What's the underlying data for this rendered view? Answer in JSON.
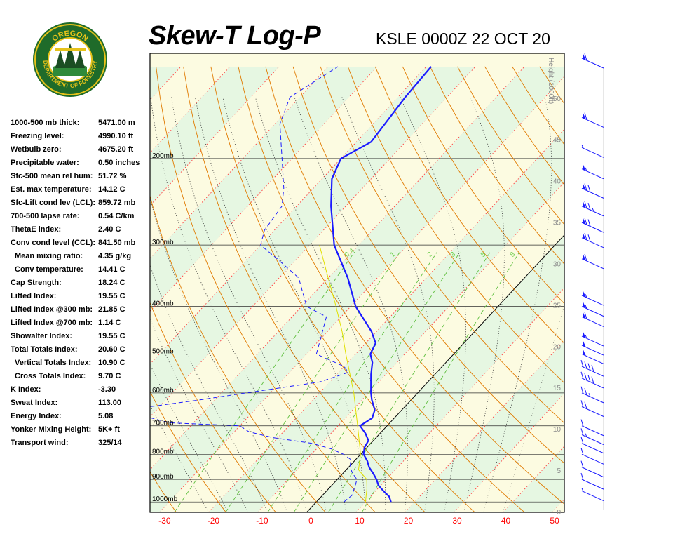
{
  "header": {
    "title": "Skew-T Log-P",
    "station": "KSLE 0000Z 22 OCT 20"
  },
  "logo": {
    "text_top": "OREGON",
    "text_bottom": "DEPARTMENT OF FORESTRY",
    "colors": {
      "ring": "#1f6b2a",
      "gold": "#e6c21a"
    }
  },
  "indices": [
    {
      "label": "1000-500 mb thick:",
      "value": "5471.00 m",
      "indent": false
    },
    {
      "label": "Freezing level:",
      "value": "4990.10 ft",
      "indent": false
    },
    {
      "label": "Wetbulb zero:",
      "value": "4675.20 ft",
      "indent": false
    },
    {
      "label": "Precipitable water:",
      "value": "0.50 inches",
      "indent": false
    },
    {
      "label": "Sfc-500 mean rel hum:",
      "value": "51.72 %",
      "indent": false
    },
    {
      "label": "Est. max temperature:",
      "value": "14.12 C",
      "indent": false
    },
    {
      "label": "Sfc-Lift cond lev (LCL):",
      "value": "859.72 mb",
      "indent": false
    },
    {
      "label": "700-500 lapse rate:",
      "value": "0.54 C/km",
      "indent": false
    },
    {
      "label": "ThetaE index:",
      "value": "2.40 C",
      "indent": false
    },
    {
      "label": "Conv cond level (CCL):",
      "value": "841.50 mb",
      "indent": false
    },
    {
      "label": "Mean mixing ratio:",
      "value": "4.35 g/kg",
      "indent": true
    },
    {
      "label": "Conv temperature:",
      "value": "14.41 C",
      "indent": true
    },
    {
      "label": "Cap Strength:",
      "value": "18.24 C",
      "indent": false
    },
    {
      "label": "Lifted Index:",
      "value": "19.55 C",
      "indent": false
    },
    {
      "label": "Lifted Index @300 mb:",
      "value": "21.85 C",
      "indent": false
    },
    {
      "label": "Lifted Index @700 mb:",
      "value": "1.14 C",
      "indent": false
    },
    {
      "label": "Showalter Index:",
      "value": "19.55 C",
      "indent": false
    },
    {
      "label": "Total Totals Index:",
      "value": "20.60 C",
      "indent": false
    },
    {
      "label": "Vertical Totals Index:",
      "value": "10.90 C",
      "indent": true
    },
    {
      "label": "Cross Totals Index:",
      "value": "9.70 C",
      "indent": true
    },
    {
      "label": "K Index:",
      "value": "-3.30",
      "indent": false
    },
    {
      "label": "Sweat Index:",
      "value": "113.00",
      "indent": false
    },
    {
      "label": "Energy Index:",
      "value": "5.08",
      "indent": false
    },
    {
      "label": "Yonker Mixing Height:",
      "value": "5K+ ft",
      "indent": false
    },
    {
      "label": "Transport wind:",
      "value": "325/14",
      "indent": false
    }
  ],
  "chart_data": {
    "type": "line",
    "title": "Skew-T Log-P",
    "x_ticks": [
      -30,
      -20,
      -10,
      0,
      10,
      20,
      30,
      40,
      50
    ],
    "x_range": [
      -33,
      52
    ],
    "pressure_levels": [
      1000,
      900,
      800,
      700,
      600,
      500,
      400,
      300,
      200
    ],
    "pressure_labels": [
      "1000mb",
      "900mb",
      "800mb",
      "700mb",
      "600mb",
      "500mb",
      "400mb",
      "300mb",
      "200mb"
    ],
    "height_axis_label": "Height (1000ft)",
    "height_ticks": [
      0,
      5,
      10,
      15,
      20,
      25,
      30,
      35,
      40,
      45,
      50
    ],
    "height_range": [
      0,
      55.5
    ],
    "mixing_ratio_labels": [
      "0.4",
      "1",
      "2",
      "3",
      "5",
      "8"
    ],
    "temperature": [
      {
        "p": 1000,
        "t": 15.2
      },
      {
        "p": 975,
        "t": 13.8
      },
      {
        "p": 950,
        "t": 11.6
      },
      {
        "p": 925,
        "t": 9.5
      },
      {
        "p": 900,
        "t": 8.0
      },
      {
        "p": 875,
        "t": 6.2
      },
      {
        "p": 850,
        "t": 4.2
      },
      {
        "p": 825,
        "t": 2.6
      },
      {
        "p": 800,
        "t": 0.6
      },
      {
        "p": 775,
        "t": -0.5
      },
      {
        "p": 750,
        "t": -1.0
      },
      {
        "p": 725,
        "t": -3.0
      },
      {
        "p": 700,
        "t": -5.5
      },
      {
        "p": 675,
        "t": -4.5
      },
      {
        "p": 650,
        "t": -5.5
      },
      {
        "p": 620,
        "t": -8.0
      },
      {
        "p": 600,
        "t": -9.5
      },
      {
        "p": 550,
        "t": -13.0
      },
      {
        "p": 520,
        "t": -15.0
      },
      {
        "p": 500,
        "t": -17.0
      },
      {
        "p": 475,
        "t": -18.0
      },
      {
        "p": 450,
        "t": -21.0
      },
      {
        "p": 400,
        "t": -29.0
      },
      {
        "p": 350,
        "t": -36.0
      },
      {
        "p": 300,
        "t": -45.0
      },
      {
        "p": 250,
        "t": -53.0
      },
      {
        "p": 220,
        "t": -58.0
      },
      {
        "p": 200,
        "t": -60.0
      },
      {
        "p": 185,
        "t": -57.0
      },
      {
        "p": 150,
        "t": -58.5
      },
      {
        "p": 130,
        "t": -59.0
      }
    ],
    "dewpoint": [
      {
        "p": 1000,
        "t": 5.6
      },
      {
        "p": 970,
        "t": 6.0
      },
      {
        "p": 925,
        "t": 4.8
      },
      {
        "p": 900,
        "t": 4.0
      },
      {
        "p": 875,
        "t": 2.0
      },
      {
        "p": 850,
        "t": 0.3
      },
      {
        "p": 820,
        "t": -1.0
      },
      {
        "p": 800,
        "t": -3.5
      },
      {
        "p": 780,
        "t": -7.0
      },
      {
        "p": 760,
        "t": -12.0
      },
      {
        "p": 740,
        "t": -21.0
      },
      {
        "p": 720,
        "t": -27.0
      },
      {
        "p": 700,
        "t": -30.0
      },
      {
        "p": 690,
        "t": -45.0
      },
      {
        "p": 670,
        "t": -51.0
      },
      {
        "p": 640,
        "t": -52.0
      },
      {
        "p": 620,
        "t": -43.0
      },
      {
        "p": 600,
        "t": -35.0
      },
      {
        "p": 570,
        "t": -22.0
      },
      {
        "p": 545,
        "t": -18.0
      },
      {
        "p": 530,
        "t": -20.0
      },
      {
        "p": 500,
        "t": -28.0
      },
      {
        "p": 450,
        "t": -31.0
      },
      {
        "p": 420,
        "t": -33.0
      },
      {
        "p": 400,
        "t": -39.0
      },
      {
        "p": 350,
        "t": -46.0
      },
      {
        "p": 320,
        "t": -54.0
      },
      {
        "p": 300,
        "t": -60.0
      },
      {
        "p": 280,
        "t": -62.0
      },
      {
        "p": 250,
        "t": -63.0
      },
      {
        "p": 230,
        "t": -66.0
      },
      {
        "p": 200,
        "t": -72.0
      },
      {
        "p": 170,
        "t": -79.0
      },
      {
        "p": 150,
        "t": -82.0
      },
      {
        "p": 130,
        "t": -78.0
      }
    ],
    "parcel": [
      {
        "p": 1000,
        "t": 10.0
      },
      {
        "p": 940,
        "t": 7.8
      },
      {
        "p": 900,
        "t": 6.0
      },
      {
        "p": 860,
        "t": 2.5
      },
      {
        "p": 800,
        "t": 0.0
      },
      {
        "p": 700,
        "t": -6.0
      },
      {
        "p": 600,
        "t": -13.0
      },
      {
        "p": 500,
        "t": -22.0
      },
      {
        "p": 450,
        "t": -27.0
      },
      {
        "p": 400,
        "t": -33.0
      },
      {
        "p": 350,
        "t": -40.0
      },
      {
        "p": 300,
        "t": -48.0
      }
    ],
    "colors": {
      "temperature": "#1a1aff",
      "dewpoint": "#1a1aff",
      "parcel": "#e0e000",
      "isotherm": "#ff4040",
      "dry_adiabat": "#e07a00",
      "moist_adiabat": "#303030",
      "mixing_ratio": "#5fbf3f",
      "isobar": "#303030",
      "zero_isotherm": "#000000",
      "band_green": "#e6f7e2",
      "band_yellow": "#fcfbe1",
      "wind": "#1a1aff"
    },
    "wind_barbs": [
      {
        "p": 190,
        "speed": 5
      },
      {
        "p": 125,
        "speed": 60
      },
      {
        "p": 165,
        "speed": 60
      },
      {
        "p": 210,
        "speed": 55
      },
      {
        "p": 230,
        "speed": 70
      },
      {
        "p": 250,
        "speed": 75
      },
      {
        "p": 270,
        "speed": 70
      },
      {
        "p": 290,
        "speed": 70
      },
      {
        "p": 320,
        "speed": 60
      },
      {
        "p": 380,
        "speed": 55
      },
      {
        "p": 400,
        "speed": 55
      },
      {
        "p": 420,
        "speed": 60
      },
      {
        "p": 460,
        "speed": 55
      },
      {
        "p": 480,
        "speed": 50
      },
      {
        "p": 500,
        "speed": 50
      },
      {
        "p": 530,
        "speed": 40
      },
      {
        "p": 560,
        "speed": 40
      },
      {
        "p": 600,
        "speed": 25
      },
      {
        "p": 640,
        "speed": 20
      },
      {
        "p": 700,
        "speed": 10
      },
      {
        "p": 730,
        "speed": 15
      },
      {
        "p": 760,
        "speed": 10
      },
      {
        "p": 800,
        "speed": 10
      },
      {
        "p": 850,
        "speed": 10
      },
      {
        "p": 900,
        "speed": 10
      },
      {
        "p": 950,
        "speed": 5
      }
    ]
  }
}
